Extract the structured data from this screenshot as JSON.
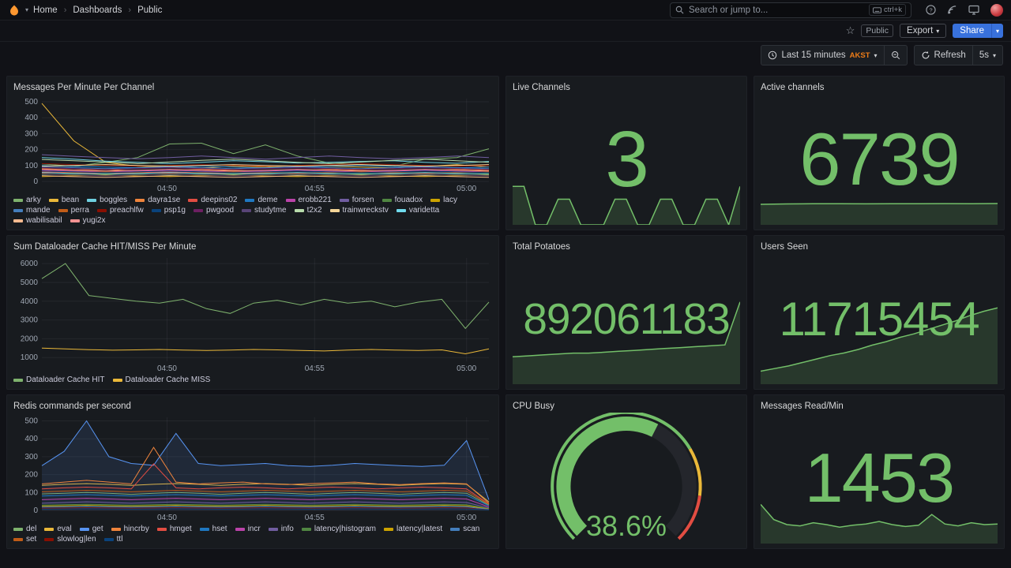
{
  "nav": {
    "breadcrumb": [
      "Home",
      "Dashboards",
      "Public"
    ],
    "search_placeholder": "Search or jump to...",
    "search_shortcut": "ctrl+k"
  },
  "toolbar": {
    "public_badge": "Public",
    "export_label": "Export",
    "share_label": "Share"
  },
  "timebar": {
    "range_label": "Last 15 minutes",
    "timezone": "AKST",
    "refresh_label": "Refresh",
    "interval": "5s"
  },
  "colors": {
    "accent_blue": "#3871dc",
    "stat_green": "#73bf69",
    "timezone_orange": "#eb7b18"
  },
  "panels": {
    "messages": {
      "title": "Messages Per Minute Per Channel"
    },
    "live_channels": {
      "title": "Live Channels",
      "value": "3"
    },
    "active_channels": {
      "title": "Active channels",
      "value": "6739"
    },
    "dataloader": {
      "title": "Sum Dataloader Cache HIT/MISS Per Minute"
    },
    "total_potatoes": {
      "title": "Total Potatoes",
      "value": "892061183"
    },
    "users_seen": {
      "title": "Users Seen",
      "value": "11715454"
    },
    "redis": {
      "title": "Redis commands per second"
    },
    "cpu_busy": {
      "title": "CPU Busy",
      "value": "38.6%"
    },
    "messages_read": {
      "title": "Messages Read/Min",
      "value": "1453"
    }
  },
  "chart_data": [
    {
      "type": "line",
      "title": "Messages Per Minute Per Channel",
      "ylim": [
        0,
        520
      ],
      "yticks": [
        0,
        100,
        200,
        300,
        400,
        500
      ],
      "xticks": [
        {
          "label": "04:50",
          "f": 0.28
        },
        {
          "label": "04:55",
          "f": 0.61
        },
        {
          "label": "05:00",
          "f": 0.95
        }
      ],
      "series": [
        {
          "name": "arky",
          "color": "#7EB26D",
          "values": [
            110,
            95,
            120,
            150,
            235,
            240,
            175,
            230,
            160,
            115,
            105,
            95,
            140,
            150,
            205
          ]
        },
        {
          "name": "bean",
          "color": "#EAB839",
          "values": [
            490,
            255,
            120,
            95,
            90,
            85,
            95,
            90,
            100,
            95,
            90,
            85,
            95,
            105,
            90
          ]
        },
        {
          "name": "boggles",
          "color": "#6ED0E0",
          "values": [
            150,
            140,
            128,
            120,
            112,
            120,
            130,
            124,
            116,
            120,
            126,
            130,
            120,
            114,
            126
          ]
        },
        {
          "name": "dayra1se",
          "color": "#EF843C",
          "values": [
            80,
            72,
            76,
            66,
            70,
            76,
            70,
            64,
            70,
            76,
            70,
            64,
            70,
            76,
            70
          ]
        },
        {
          "name": "deepins02",
          "color": "#E24D42",
          "values": [
            60,
            56,
            50,
            56,
            60,
            54,
            50,
            56,
            50,
            56,
            60,
            54,
            50,
            56,
            60
          ]
        },
        {
          "name": "deme",
          "color": "#1F78C1",
          "values": [
            100,
            94,
            90,
            86,
            90,
            96,
            90,
            84,
            90,
            96,
            100,
            94,
            90,
            86,
            90
          ]
        },
        {
          "name": "erobb221",
          "color": "#BA43A9",
          "values": [
            70,
            64,
            60,
            66,
            70,
            64,
            60,
            66,
            70,
            64,
            60,
            66,
            70,
            64,
            60
          ]
        },
        {
          "name": "forsen",
          "color": "#705DA0",
          "values": [
            168,
            158,
            150,
            142,
            150,
            160,
            150,
            140,
            150,
            160,
            150,
            142,
            150,
            160,
            150
          ]
        },
        {
          "name": "fouadox",
          "color": "#508642",
          "values": [
            42,
            46,
            50,
            46,
            40,
            46,
            50,
            46,
            40,
            46,
            50,
            46,
            40,
            46,
            50
          ]
        },
        {
          "name": "lacy",
          "color": "#CCA300",
          "values": [
            30,
            36,
            40,
            34,
            30,
            36,
            40,
            34,
            30,
            36,
            40,
            34,
            30,
            36,
            40
          ]
        },
        {
          "name": "mande",
          "color": "#447EBC",
          "values": [
            92,
            86,
            80,
            86,
            92,
            86,
            80,
            86,
            92,
            86,
            80,
            86,
            92,
            86,
            80
          ]
        },
        {
          "name": "perra",
          "color": "#C15C17",
          "values": [
            52,
            56,
            60,
            56,
            50,
            56,
            60,
            56,
            50,
            56,
            60,
            56,
            50,
            56,
            60
          ]
        },
        {
          "name": "preachlfw",
          "color": "#890F02",
          "values": [
            112,
            106,
            100,
            96,
            100,
            106,
            100,
            96,
            100,
            106,
            112,
            106,
            100,
            96,
            100
          ]
        },
        {
          "name": "psp1g",
          "color": "#0A437C",
          "values": [
            66,
            60,
            56,
            60,
            66,
            60,
            56,
            60,
            66,
            60,
            56,
            60,
            66,
            60,
            56
          ]
        },
        {
          "name": "pwgood",
          "color": "#6D1F62",
          "values": [
            86,
            80,
            76,
            80,
            86,
            80,
            76,
            80,
            86,
            80,
            76,
            80,
            86,
            80,
            76
          ]
        },
        {
          "name": "studytme",
          "color": "#584477",
          "values": [
            46,
            40,
            36,
            40,
            46,
            40,
            36,
            40,
            46,
            40,
            36,
            40,
            46,
            40,
            36
          ]
        },
        {
          "name": "t2x2",
          "color": "#B7DBAB",
          "values": [
            138,
            130,
            122,
            112,
            122,
            132,
            140,
            130,
            120,
            112,
            122,
            132,
            140,
            130,
            120
          ]
        },
        {
          "name": "trainwreckstv",
          "color": "#F4D598",
          "values": [
            96,
            100,
            106,
            100,
            96,
            100,
            106,
            100,
            96,
            100,
            106,
            100,
            96,
            100,
            106
          ]
        },
        {
          "name": "varidetta",
          "color": "#70DBED",
          "values": [
            56,
            50,
            46,
            50,
            56,
            50,
            46,
            50,
            56,
            50,
            46,
            50,
            56,
            50,
            46
          ]
        },
        {
          "name": "wabilisabil",
          "color": "#F9BA8F",
          "values": [
            36,
            30,
            26,
            30,
            36,
            30,
            26,
            30,
            36,
            30,
            26,
            30,
            36,
            30,
            26
          ]
        },
        {
          "name": "yugi2x",
          "color": "#F29191",
          "values": [
            76,
            70,
            66,
            70,
            76,
            70,
            66,
            70,
            76,
            70,
            66,
            70,
            76,
            70,
            66
          ]
        }
      ]
    },
    {
      "type": "line",
      "title": "Sum Dataloader Cache HIT/MISS Per Minute",
      "ylim": [
        800,
        6300
      ],
      "yticks": [
        1000,
        2000,
        3000,
        4000,
        5000,
        6000
      ],
      "xticks": [
        {
          "label": "04:50",
          "f": 0.28
        },
        {
          "label": "04:55",
          "f": 0.61
        },
        {
          "label": "05:00",
          "f": 0.95
        }
      ],
      "series": [
        {
          "name": "Dataloader Cache HIT",
          "color": "#7EB26D",
          "values": [
            5200,
            6000,
            4300,
            4150,
            4000,
            3900,
            4100,
            3600,
            3350,
            3900,
            4050,
            3800,
            4100,
            3900,
            4000,
            3700,
            3950,
            4100,
            2550,
            3950
          ]
        },
        {
          "name": "Dataloader Cache MISS",
          "color": "#EAB839",
          "values": [
            1500,
            1460,
            1420,
            1390,
            1410,
            1430,
            1400,
            1380,
            1400,
            1430,
            1410,
            1380,
            1350,
            1400,
            1430,
            1400,
            1380,
            1410,
            1200,
            1460
          ]
        }
      ]
    },
    {
      "type": "line",
      "title": "Redis commands per second",
      "ylim": [
        0,
        520
      ],
      "yticks": [
        0,
        100,
        200,
        300,
        400,
        500
      ],
      "xticks": [
        {
          "label": "04:50",
          "f": 0.28
        },
        {
          "label": "04:55",
          "f": 0.61
        },
        {
          "label": "05:00",
          "f": 0.95
        }
      ],
      "series": [
        {
          "name": "del",
          "color": "#7EB26D",
          "values": [
            92,
            96,
            100,
            96,
            90,
            96,
            100,
            96,
            90,
            96,
            100,
            96,
            90,
            96,
            100,
            96,
            90,
            96,
            100,
            96,
            30
          ]
        },
        {
          "name": "eval",
          "color": "#EAB839",
          "values": [
            140,
            146,
            150,
            146,
            140,
            146,
            150,
            146,
            140,
            146,
            150,
            146,
            140,
            146,
            150,
            146,
            140,
            146,
            150,
            146,
            48
          ]
        },
        {
          "name": "get",
          "color": "#5794F2",
          "fill": true,
          "values": [
            250,
            330,
            500,
            300,
            262,
            252,
            430,
            262,
            250,
            256,
            262,
            250,
            246,
            252,
            262,
            256,
            250,
            246,
            252,
            390,
            60
          ]
        },
        {
          "name": "hincrby",
          "color": "#EF843C",
          "values": [
            148,
            158,
            168,
            158,
            148,
            352,
            158,
            148,
            154,
            158,
            148,
            144,
            150,
            154,
            158,
            148,
            144,
            150,
            154,
            148,
            40
          ]
        },
        {
          "name": "hmget",
          "color": "#E24D42",
          "values": [
            120,
            126,
            130,
            126,
            120,
            260,
            126,
            120,
            126,
            130,
            126,
            120,
            126,
            130,
            126,
            120,
            126,
            130,
            126,
            120,
            36
          ]
        },
        {
          "name": "hset",
          "color": "#1F78C1",
          "values": [
            80,
            84,
            88,
            84,
            80,
            84,
            88,
            84,
            80,
            84,
            88,
            84,
            80,
            84,
            88,
            84,
            80,
            84,
            88,
            84,
            26
          ]
        },
        {
          "name": "incr",
          "color": "#BA43A9",
          "values": [
            60,
            64,
            68,
            64,
            60,
            64,
            68,
            64,
            60,
            64,
            68,
            64,
            60,
            64,
            68,
            64,
            60,
            64,
            68,
            64,
            20
          ]
        },
        {
          "name": "info",
          "color": "#705DA0",
          "values": [
            40,
            44,
            48,
            44,
            40,
            44,
            48,
            44,
            40,
            44,
            48,
            44,
            40,
            44,
            48,
            44,
            40,
            44,
            48,
            44,
            14
          ]
        },
        {
          "name": "latency|histogram",
          "color": "#508642",
          "values": [
            30,
            32,
            34,
            32,
            30,
            32,
            34,
            32,
            30,
            32,
            34,
            32,
            30,
            32,
            34,
            32,
            30,
            32,
            34,
            32,
            10
          ]
        },
        {
          "name": "latency|latest",
          "color": "#CCA300",
          "values": [
            24,
            26,
            28,
            26,
            24,
            26,
            28,
            26,
            24,
            26,
            28,
            26,
            24,
            26,
            28,
            26,
            24,
            26,
            28,
            26,
            8
          ]
        },
        {
          "name": "scan",
          "color": "#447EBC",
          "values": [
            18,
            20,
            22,
            20,
            18,
            20,
            22,
            20,
            18,
            20,
            22,
            20,
            18,
            20,
            22,
            20,
            18,
            20,
            22,
            20,
            6
          ]
        },
        {
          "name": "set",
          "color": "#C15C17",
          "values": [
            104,
            108,
            112,
            108,
            104,
            108,
            112,
            108,
            104,
            108,
            112,
            108,
            104,
            108,
            112,
            108,
            104,
            108,
            112,
            108,
            34
          ]
        },
        {
          "name": "slowlog|len",
          "color": "#890F02",
          "values": [
            12,
            13,
            14,
            13,
            12,
            13,
            14,
            13,
            12,
            13,
            14,
            13,
            12,
            13,
            14,
            13,
            12,
            13,
            14,
            13,
            4
          ]
        },
        {
          "name": "ttl",
          "color": "#0A437C",
          "values": [
            8,
            9,
            10,
            9,
            8,
            9,
            10,
            9,
            8,
            9,
            10,
            9,
            8,
            9,
            10,
            9,
            8,
            9,
            10,
            9,
            3
          ]
        }
      ]
    },
    {
      "type": "sparkline",
      "title": "Live Channels",
      "ymax": 3.2,
      "values": [
        3,
        3,
        0,
        0,
        2,
        2,
        0,
        0,
        0,
        2,
        2,
        0,
        0,
        2,
        2,
        0,
        0,
        2,
        2,
        0,
        3
      ]
    },
    {
      "type": "sparkline",
      "title": "Active channels",
      "ymax": 8000,
      "values": [
        6500,
        6620,
        6680,
        6700,
        6660,
        6710,
        6690,
        6730,
        6700,
        6739
      ]
    },
    {
      "type": "sparkline",
      "title": "Total Potatoes",
      "ymax": 95,
      "values": [
        30,
        31,
        32,
        33,
        34,
        34,
        35,
        36,
        37,
        38,
        39,
        40,
        41,
        42,
        43,
        90
      ]
    },
    {
      "type": "sparkline",
      "title": "Users Seen",
      "ymax": 100,
      "values": [
        15,
        18,
        21,
        25,
        29,
        33,
        36,
        40,
        45,
        49,
        54,
        58,
        63,
        68,
        73,
        79,
        84,
        88
      ]
    },
    {
      "type": "sparkline",
      "title": "Messages Read/Min",
      "ymax": 70,
      "values": [
        62,
        38,
        30,
        28,
        33,
        30,
        26,
        29,
        31,
        35,
        30,
        27,
        29,
        46,
        31,
        28,
        33,
        30,
        31
      ]
    },
    {
      "type": "gauge",
      "title": "CPU Busy",
      "value": "38.6%",
      "sweep_fraction": 0.6,
      "thresholds": [
        {
          "color": "#73bf69",
          "to": 0.72
        },
        {
          "color": "#EAB839",
          "to": 0.86
        },
        {
          "color": "#E24D42",
          "to": 1
        }
      ]
    }
  ]
}
